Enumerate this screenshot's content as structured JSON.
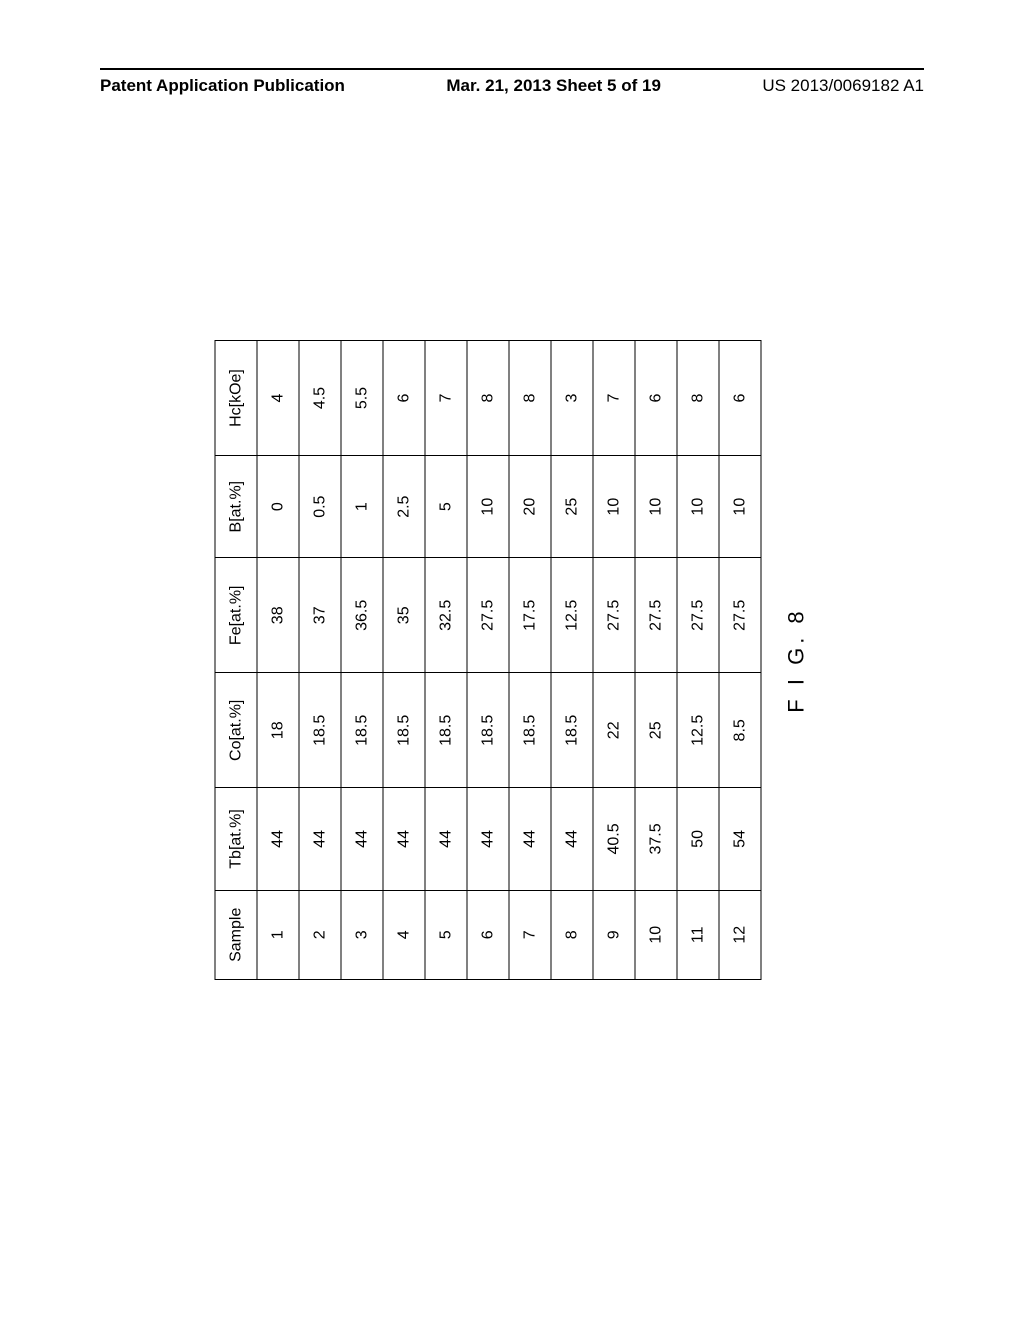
{
  "header": {
    "left": "Patent Application Publication",
    "center": "Mar. 21, 2013  Sheet 5 of 19",
    "right": "US 2013/0069182 A1"
  },
  "figure": {
    "caption": "F I G. 8",
    "columns": [
      "Sample",
      "Tb[at.%]",
      "Co[at.%]",
      "Fe[at.%]",
      "B[at.%]",
      "Hc[kOe]"
    ],
    "rows": [
      [
        "1",
        "44",
        "18",
        "38",
        "0",
        "4"
      ],
      [
        "2",
        "44",
        "18.5",
        "37",
        "0.5",
        "4.5"
      ],
      [
        "3",
        "44",
        "18.5",
        "36.5",
        "1",
        "5.5"
      ],
      [
        "4",
        "44",
        "18.5",
        "35",
        "2.5",
        "6"
      ],
      [
        "5",
        "44",
        "18.5",
        "32.5",
        "5",
        "7"
      ],
      [
        "6",
        "44",
        "18.5",
        "27.5",
        "10",
        "8"
      ],
      [
        "7",
        "44",
        "18.5",
        "17.5",
        "20",
        "8"
      ],
      [
        "8",
        "44",
        "18.5",
        "12.5",
        "25",
        "3"
      ],
      [
        "9",
        "40.5",
        "22",
        "27.5",
        "10",
        "7"
      ],
      [
        "10",
        "37.5",
        "25",
        "27.5",
        "10",
        "6"
      ],
      [
        "11",
        "50",
        "12.5",
        "27.5",
        "10",
        "8"
      ],
      [
        "12",
        "54",
        "8.5",
        "27.5",
        "10",
        "6"
      ]
    ]
  }
}
